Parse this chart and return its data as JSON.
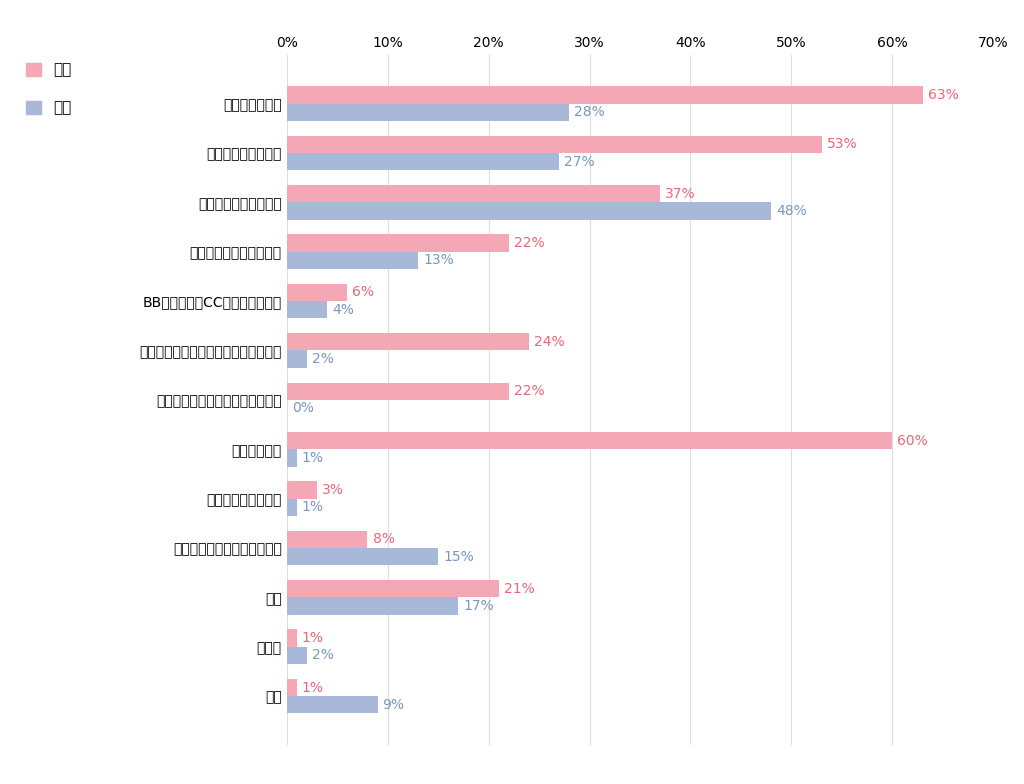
{
  "categories": [
    "リップクリーム",
    "日焼け防止クリーム",
    "制汗剤・汗拭きシート",
    "保湿剤・ハンドクリーム",
    "BBクリーム・CCクリーム・下地",
    "ファンデーション・パウダー・チーク",
    "アイシャドウ、アイライナーなど",
    "口紅・グロス",
    "マニキュア・ジェル",
    "ヘアワックス・ヘアスプレー",
    "香水",
    "その他",
    "なし"
  ],
  "female": [
    63,
    53,
    37,
    22,
    6,
    24,
    22,
    60,
    3,
    8,
    21,
    1,
    1
  ],
  "male": [
    28,
    27,
    48,
    13,
    4,
    2,
    0,
    1,
    1,
    15,
    17,
    2,
    9
  ],
  "female_color": "#F4A7B4",
  "male_color": "#A8B8D8",
  "female_label": "女性",
  "male_label": "男性",
  "xlim": [
    0,
    70
  ],
  "xticks": [
    0,
    10,
    20,
    30,
    40,
    50,
    60,
    70
  ],
  "xtick_labels": [
    "0%",
    "10%",
    "20%",
    "30%",
    "40%",
    "50%",
    "60%",
    "70%"
  ],
  "bar_height": 0.35,
  "background_color": "#FFFFFF",
  "grid_color": "#DDDDDD",
  "text_color_female": "#E8677A",
  "text_color_male": "#7A96C2",
  "label_fontsize": 10,
  "tick_fontsize": 10,
  "legend_fontsize": 11
}
